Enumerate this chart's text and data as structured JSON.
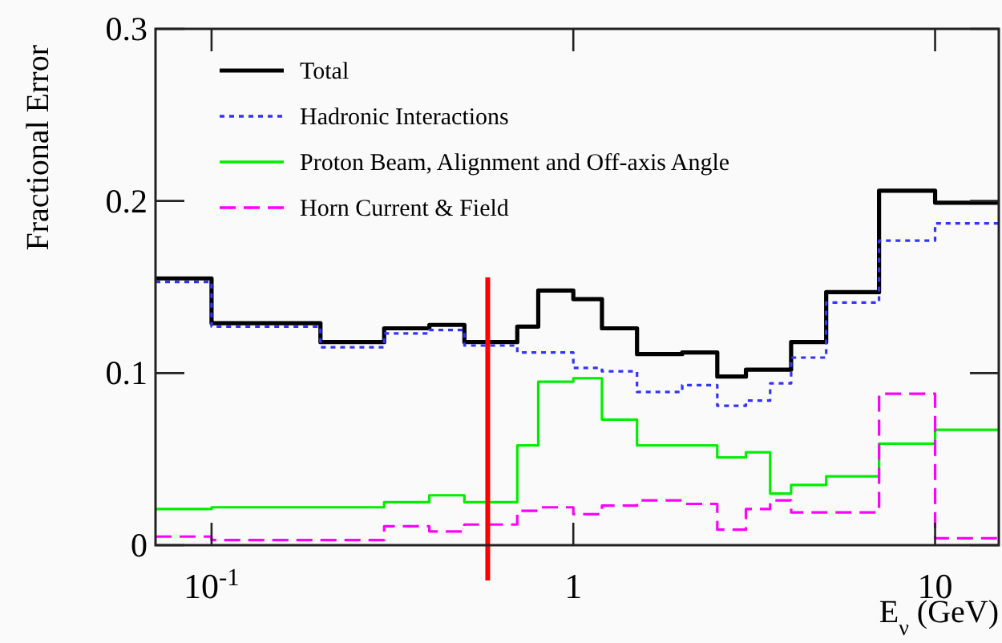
{
  "chart_data": {
    "type": "step",
    "xlabel": "E$_{ν}$ (GeV)",
    "ylabel": "Fractional Error",
    "x": [
      0.07,
      0.1,
      0.2,
      0.3,
      0.4,
      0.5,
      0.7,
      0.8,
      1,
      1.2,
      1.5,
      2,
      2.5,
      3,
      3.5,
      4,
      5,
      7,
      10,
      15
    ],
    "series": [
      {
        "name": "Total",
        "color": "#000000",
        "line_style": "solid",
        "values": [
          0.155,
          0.129,
          0.118,
          0.126,
          0.128,
          0.118,
          0.127,
          0.148,
          0.143,
          0.126,
          0.111,
          0.112,
          0.098,
          0.102,
          0.102,
          0.118,
          0.147,
          0.206,
          0.199,
          0.199
        ]
      },
      {
        "name": "Hadronic Interactions",
        "color": "#3333ff",
        "line_style": "dotted",
        "values": [
          0.153,
          0.127,
          0.115,
          0.123,
          0.125,
          0.116,
          0.112,
          0.112,
          0.103,
          0.101,
          0.089,
          0.093,
          0.081,
          0.084,
          0.094,
          0.109,
          0.141,
          0.177,
          0.187,
          0.187
        ]
      },
      {
        "name": "Proton Beam, Alignment and Off-axis Angle",
        "color": "#00ee00",
        "line_style": "solid",
        "values": [
          0.021,
          0.022,
          0.022,
          0.025,
          0.029,
          0.025,
          0.058,
          0.095,
          0.097,
          0.073,
          0.058,
          0.058,
          0.051,
          0.054,
          0.03,
          0.035,
          0.04,
          0.059,
          0.067,
          0.067
        ]
      },
      {
        "name": "Horn Current & Field",
        "color": "#ff00ff",
        "line_style": "dashed",
        "values": [
          0.005,
          0.003,
          0.003,
          0.011,
          0.008,
          0.012,
          0.02,
          0.022,
          0.018,
          0.023,
          0.026,
          0.024,
          0.009,
          0.021,
          0.026,
          0.019,
          0.019,
          0.088,
          0.004,
          0.004
        ]
      }
    ],
    "log": "x",
    "xlim": [
      0.07,
      15
    ],
    "ylim": [
      0,
      0.3
    ],
    "xticks": [
      {
        "value": 0.1,
        "label": "10$^{-1}$"
      },
      1,
      10
    ],
    "yticks": [
      0,
      0.1,
      0.2,
      0.3
    ],
    "ref_lines": [
      {
        "axis": "x",
        "value": 0.58,
        "color": "#ff0000",
        "line_style": "solid"
      }
    ],
    "legend": "top left",
    "grid": false
  }
}
